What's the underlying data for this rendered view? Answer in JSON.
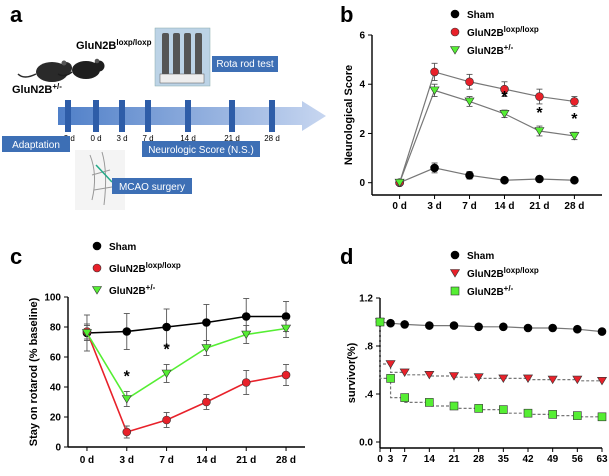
{
  "panel_a": {
    "letter": "a",
    "mouse_label_1": "GluN2B",
    "mouse_label_1_sup": "loxp/loxp",
    "mouse_label_2": "GluN2B",
    "mouse_label_2_sup": "+/-",
    "rotarod_label": "Rota rod test",
    "adaptation_label": "Adaptation",
    "ns_label": "Neurologic Score (N.S.)",
    "mcao_label": "MCAO surgery",
    "timeline_ticks": [
      "-3 d",
      "0 d",
      "3 d",
      "7 d",
      "14 d",
      "21 d",
      "28 d"
    ]
  },
  "chart_data": [
    {
      "id": "b",
      "letter": "b",
      "type": "line",
      "ylabel": "Neurological Score",
      "xlabel": "",
      "categories": [
        "0 d",
        "3 d",
        "7 d",
        "14 d",
        "21 d",
        "28 d"
      ],
      "ylim": [
        -0.5,
        6
      ],
      "yticks": [
        0,
        2,
        4,
        6
      ],
      "series": [
        {
          "name": "Sham",
          "sup": "",
          "color": "#000000",
          "marker": "circle",
          "values": [
            0,
            0.6,
            0.3,
            0.1,
            0.15,
            0.1
          ],
          "errors": [
            0.1,
            0.2,
            0.15,
            0.08,
            0.08,
            0.08
          ]
        },
        {
          "name": "GluN2B",
          "sup": "loxp/loxp",
          "color": "#e8212a",
          "marker": "circle",
          "values": [
            0,
            4.5,
            4.1,
            3.8,
            3.5,
            3.3
          ],
          "errors": [
            0.1,
            0.35,
            0.3,
            0.3,
            0.3,
            0.2
          ]
        },
        {
          "name": "GluN2B",
          "sup": "+/-",
          "color": "#55ee33",
          "marker": "triangle-down",
          "values": [
            0,
            3.75,
            3.3,
            2.8,
            2.1,
            1.9
          ],
          "errors": [
            0.1,
            0.25,
            0.2,
            0.15,
            0.2,
            0.15
          ]
        }
      ],
      "annotations": [
        {
          "label": "*",
          "category": "14 d"
        },
        {
          "label": "*",
          "category": "21 d"
        },
        {
          "label": "*",
          "category": "28 d"
        }
      ]
    },
    {
      "id": "c",
      "letter": "c",
      "type": "line",
      "ylabel": "Stay on rotarod (% baseline)",
      "xlabel": "",
      "categories": [
        "0 d",
        "3 d",
        "7 d",
        "14 d",
        "21 d",
        "28 d"
      ],
      "ylim": [
        0,
        100
      ],
      "yticks": [
        0,
        20,
        40,
        60,
        80,
        100
      ],
      "series": [
        {
          "name": "Sham",
          "sup": "",
          "color": "#000000",
          "marker": "circle",
          "values": [
            76,
            77,
            80,
            83,
            87,
            87
          ],
          "errors": [
            12,
            12,
            12,
            12,
            12,
            10
          ]
        },
        {
          "name": "GluN2B",
          "sup": "loxp/loxp",
          "color": "#e8212a",
          "marker": "circle",
          "values": [
            77,
            10,
            18,
            30,
            43,
            48
          ],
          "errors": [
            5,
            4,
            5,
            5,
            8,
            7
          ]
        },
        {
          "name": "GluN2B",
          "sup": "+/-",
          "color": "#55ee33",
          "marker": "triangle-down",
          "values": [
            76,
            32,
            49,
            66,
            75,
            79
          ],
          "errors": [
            5,
            5,
            6,
            5,
            6,
            6
          ]
        }
      ],
      "annotations": [
        {
          "label": "*",
          "category": "3 d"
        },
        {
          "label": "*",
          "category": "7 d"
        }
      ]
    },
    {
      "id": "d",
      "letter": "d",
      "type": "line",
      "ylabel": "survivor(%)",
      "xlabel": "",
      "categories": [
        "0",
        "3",
        "7",
        "14",
        "21",
        "28",
        "35",
        "42",
        "49",
        "56",
        "63"
      ],
      "x": [
        0,
        3,
        7,
        14,
        21,
        28,
        35,
        42,
        49,
        56,
        63
      ],
      "ylim": [
        -0.05,
        1.2
      ],
      "yticks": [
        0.0,
        0.4,
        0.8,
        1.2
      ],
      "ytick_labels": [
        "0.0",
        ".4",
        ".8",
        "1.2"
      ],
      "series": [
        {
          "name": "Sham",
          "sup": "",
          "color": "#000000",
          "marker": "circle",
          "values": [
            1.0,
            0.99,
            0.98,
            0.97,
            0.97,
            0.96,
            0.96,
            0.95,
            0.95,
            0.94,
            0.92
          ]
        },
        {
          "name": "GluN2B",
          "sup": "loxp/loxp",
          "color": "#e8212a",
          "marker": "triangle-down",
          "values": [
            1.0,
            0.65,
            0.58,
            0.56,
            0.55,
            0.54,
            0.53,
            0.53,
            0.52,
            0.52,
            0.51
          ]
        },
        {
          "name": "GluN2B",
          "sup": "+/-",
          "color": "#55ee33",
          "marker": "square",
          "values": [
            1.0,
            0.53,
            0.37,
            0.33,
            0.3,
            0.28,
            0.27,
            0.24,
            0.23,
            0.22,
            0.21
          ]
        }
      ]
    }
  ]
}
